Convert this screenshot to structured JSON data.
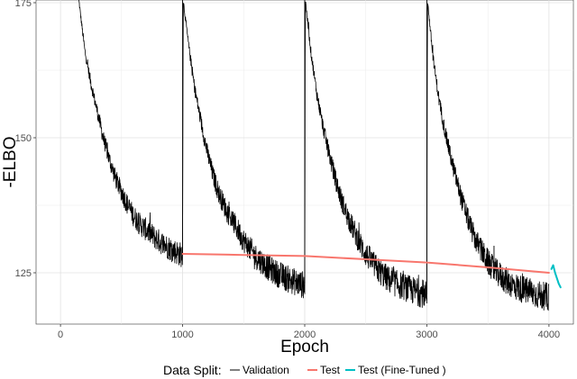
{
  "chart_data": {
    "type": "line",
    "title": "",
    "xlabel": "Epoch",
    "ylabel": "-ELBO",
    "xlim": [
      -200,
      4200
    ],
    "ylim": [
      115.5,
      175.5
    ],
    "x_ticks": [
      0,
      1000,
      2000,
      3000,
      4000
    ],
    "x_tick_labels": [
      "0",
      "1000",
      "2000",
      "3000",
      "4000"
    ],
    "y_ticks": [
      125,
      150,
      175
    ],
    "y_tick_labels": [
      "125",
      "150",
      "175"
    ],
    "grid": true,
    "legend": {
      "title": "Data Split:",
      "position": "bottom",
      "entries": [
        "Validation",
        "Test",
        "Test (Fine-Tuned )"
      ]
    },
    "series": [
      {
        "name": "Validation",
        "color": "#000000",
        "style": "noisy",
        "segments": [
          {
            "x": [
              150,
              200,
              250,
              300,
              350,
              400,
              450,
              500,
              550,
              600,
              650,
              700,
              750,
              800,
              850,
              900,
              950,
              1000
            ],
            "y": [
              175.5,
              166,
              160,
              155,
              150,
              146,
              142.5,
              140,
              137.5,
              135.5,
              134,
              133,
              132,
              131,
              130.2,
              129.5,
              128.8,
              128.2
            ]
          },
          {
            "x": [
              1000,
              1005,
              1050,
              1100,
              1150,
              1200,
              1250,
              1300,
              1350,
              1400,
              1450,
              1500,
              1550,
              1600,
              1650,
              1700,
              1750,
              1800,
              1850,
              1900,
              1950,
              2000
            ],
            "y": [
              128.5,
              175.5,
              167,
              159,
              153,
              147.5,
              143,
              139.5,
              137,
              135,
              133,
              131,
              129.5,
              128,
              127,
              126,
              125.2,
              124.5,
              124,
              123.5,
              123,
              122.7
            ]
          },
          {
            "x": [
              2000,
              2005,
              2050,
              2100,
              2150,
              2200,
              2250,
              2300,
              2350,
              2400,
              2450,
              2500,
              2550,
              2600,
              2650,
              2700,
              2750,
              2800,
              2850,
              2900,
              2950,
              3000
            ],
            "y": [
              123,
              175.5,
              166,
              158,
              152,
              147,
              142.5,
              138.5,
              135.5,
              133,
              130.5,
              128.5,
              127,
              125.5,
              124.5,
              123.5,
              123,
              122.5,
              122,
              121.6,
              121.2,
              121
            ]
          },
          {
            "x": [
              3000,
              3005,
              3050,
              3100,
              3150,
              3200,
              3250,
              3300,
              3350,
              3400,
              3450,
              3500,
              3550,
              3600,
              3650,
              3700,
              3750,
              3800,
              3850,
              3900,
              3950,
              4000
            ],
            "y": [
              121,
              175.5,
              165,
              157,
              151,
              146,
              141.5,
              137.5,
              134,
              131,
              129,
              127,
              125.5,
              124.5,
              123.5,
              122.8,
              122.2,
              121.8,
              121.4,
              121,
              120.7,
              120.5
            ]
          }
        ],
        "spikes": [
          {
            "x": 1000,
            "y_from": 128.5,
            "y_to": 175.5
          },
          {
            "x": 2000,
            "y_from": 123,
            "y_to": 175.5
          },
          {
            "x": 3000,
            "y_from": 121,
            "y_to": 175.5
          },
          {
            "x": 3550,
            "y_from": 124,
            "y_to": 130
          }
        ]
      },
      {
        "name": "Test",
        "color": "#f8766d",
        "style": "smooth",
        "x": [
          1000,
          1500,
          2000,
          2500,
          3000,
          3500,
          4000
        ],
        "y": [
          128.5,
          128.3,
          128.1,
          127.5,
          126.9,
          126.0,
          125.0
        ]
      },
      {
        "name": "Test (Fine-Tuned )",
        "color": "#00bfc4",
        "style": "smooth",
        "x": [
          4020,
          4035,
          4050,
          4065,
          4080,
          4095
        ],
        "y": [
          125.7,
          126.4,
          125.0,
          124.0,
          123.0,
          122.3
        ]
      }
    ]
  }
}
